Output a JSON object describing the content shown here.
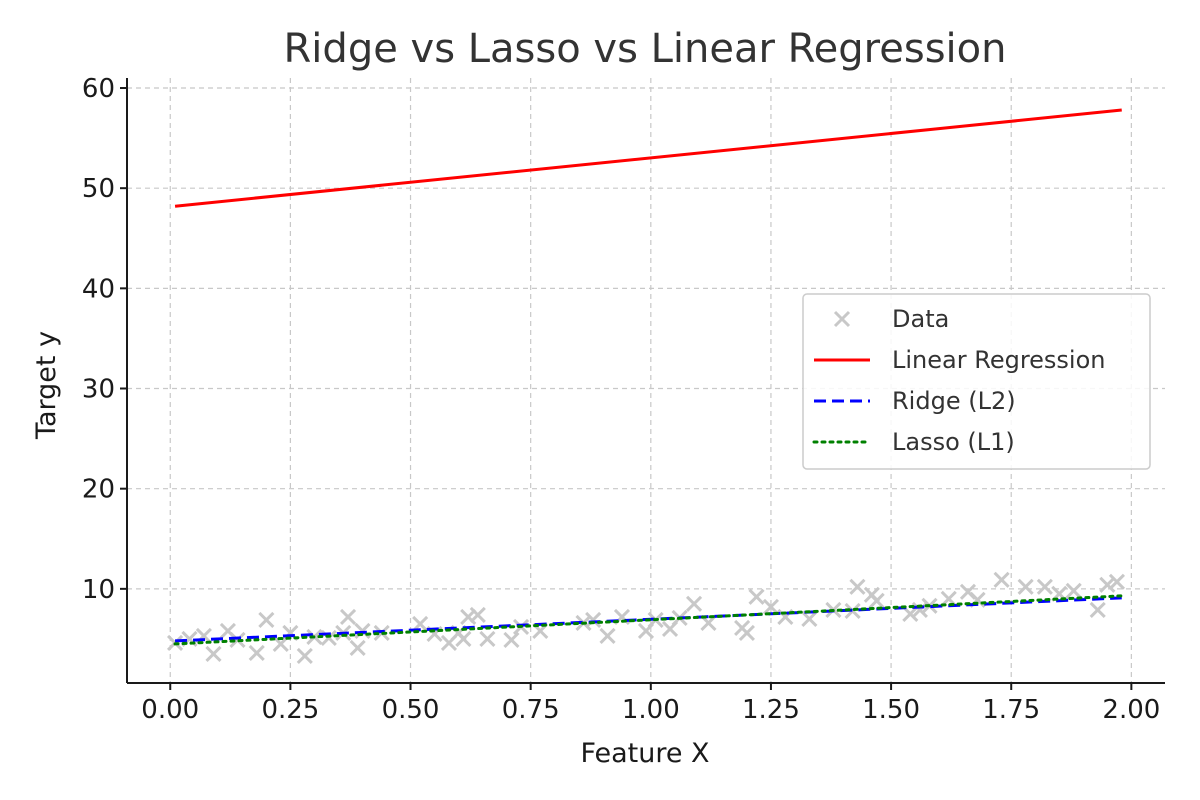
{
  "chart_data": {
    "type": "scatter",
    "title": "Ridge vs Lasso vs Linear Regression",
    "xlabel": "Feature X",
    "ylabel": "Target y",
    "xlim": [
      -0.09,
      2.07
    ],
    "ylim": [
      0.6,
      61
    ],
    "xticks": [
      0.0,
      0.25,
      0.5,
      0.75,
      1.0,
      1.25,
      1.5,
      1.75,
      2.0
    ],
    "xtick_labels": [
      "0.00",
      "0.25",
      "0.50",
      "0.75",
      "1.00",
      "1.25",
      "1.50",
      "1.75",
      "2.00"
    ],
    "yticks": [
      10,
      20,
      30,
      40,
      50,
      60
    ],
    "ytick_labels": [
      "10",
      "20",
      "30",
      "40",
      "50",
      "60"
    ],
    "grid": true,
    "legend_position": "center-right",
    "series": [
      {
        "name": "Data",
        "kind": "scatter",
        "marker": "x",
        "color": "#c8c8c8",
        "points": [
          [
            0.01,
            4.6
          ],
          [
            0.04,
            5.0
          ],
          [
            0.07,
            5.3
          ],
          [
            0.09,
            3.5
          ],
          [
            0.12,
            5.8
          ],
          [
            0.14,
            4.9
          ],
          [
            0.18,
            3.6
          ],
          [
            0.2,
            6.9
          ],
          [
            0.23,
            4.5
          ],
          [
            0.25,
            5.6
          ],
          [
            0.28,
            3.3
          ],
          [
            0.3,
            5.2
          ],
          [
            0.33,
            5.1
          ],
          [
            0.36,
            5.6
          ],
          [
            0.37,
            7.2
          ],
          [
            0.39,
            4.1
          ],
          [
            0.4,
            5.8
          ],
          [
            0.44,
            5.6
          ],
          [
            0.52,
            6.5
          ],
          [
            0.55,
            5.5
          ],
          [
            0.58,
            4.6
          ],
          [
            0.6,
            5.6
          ],
          [
            0.61,
            5.0
          ],
          [
            0.62,
            7.2
          ],
          [
            0.64,
            7.4
          ],
          [
            0.66,
            5.0
          ],
          [
            0.71,
            4.9
          ],
          [
            0.73,
            6.2
          ],
          [
            0.77,
            5.8
          ],
          [
            0.86,
            6.6
          ],
          [
            0.88,
            6.9
          ],
          [
            0.91,
            5.3
          ],
          [
            0.94,
            7.2
          ],
          [
            0.99,
            5.8
          ],
          [
            1.01,
            6.9
          ],
          [
            1.04,
            6.0
          ],
          [
            1.06,
            7.1
          ],
          [
            1.09,
            8.5
          ],
          [
            1.12,
            6.6
          ],
          [
            1.19,
            6.1
          ],
          [
            1.2,
            5.6
          ],
          [
            1.22,
            9.2
          ],
          [
            1.25,
            8.2
          ],
          [
            1.28,
            7.2
          ],
          [
            1.33,
            7.0
          ],
          [
            1.38,
            7.9
          ],
          [
            1.42,
            7.8
          ],
          [
            1.43,
            10.2
          ],
          [
            1.46,
            9.4
          ],
          [
            1.47,
            8.8
          ],
          [
            1.54,
            7.5
          ],
          [
            1.56,
            7.9
          ],
          [
            1.58,
            8.3
          ],
          [
            1.62,
            9.0
          ],
          [
            1.66,
            9.7
          ],
          [
            1.68,
            8.9
          ],
          [
            1.73,
            10.9
          ],
          [
            1.78,
            10.2
          ],
          [
            1.82,
            10.2
          ],
          [
            1.85,
            9.5
          ],
          [
            1.88,
            9.8
          ],
          [
            1.93,
            7.9
          ],
          [
            1.95,
            10.4
          ],
          [
            1.97,
            10.7
          ]
        ]
      },
      {
        "name": "Linear Regression",
        "kind": "line",
        "color": "#ff0000",
        "style": "solid",
        "x": [
          0.01,
          1.98
        ],
        "y": [
          48.2,
          57.8
        ]
      },
      {
        "name": "Ridge (L2)",
        "kind": "line",
        "color": "#0000ff",
        "style": "dashed",
        "x": [
          0.01,
          1.98
        ],
        "y": [
          4.8,
          9.1
        ]
      },
      {
        "name": "Lasso (L1)",
        "kind": "line",
        "color": "#008000",
        "style": "dotted",
        "x": [
          0.01,
          1.98
        ],
        "y": [
          4.5,
          9.3
        ]
      }
    ]
  }
}
